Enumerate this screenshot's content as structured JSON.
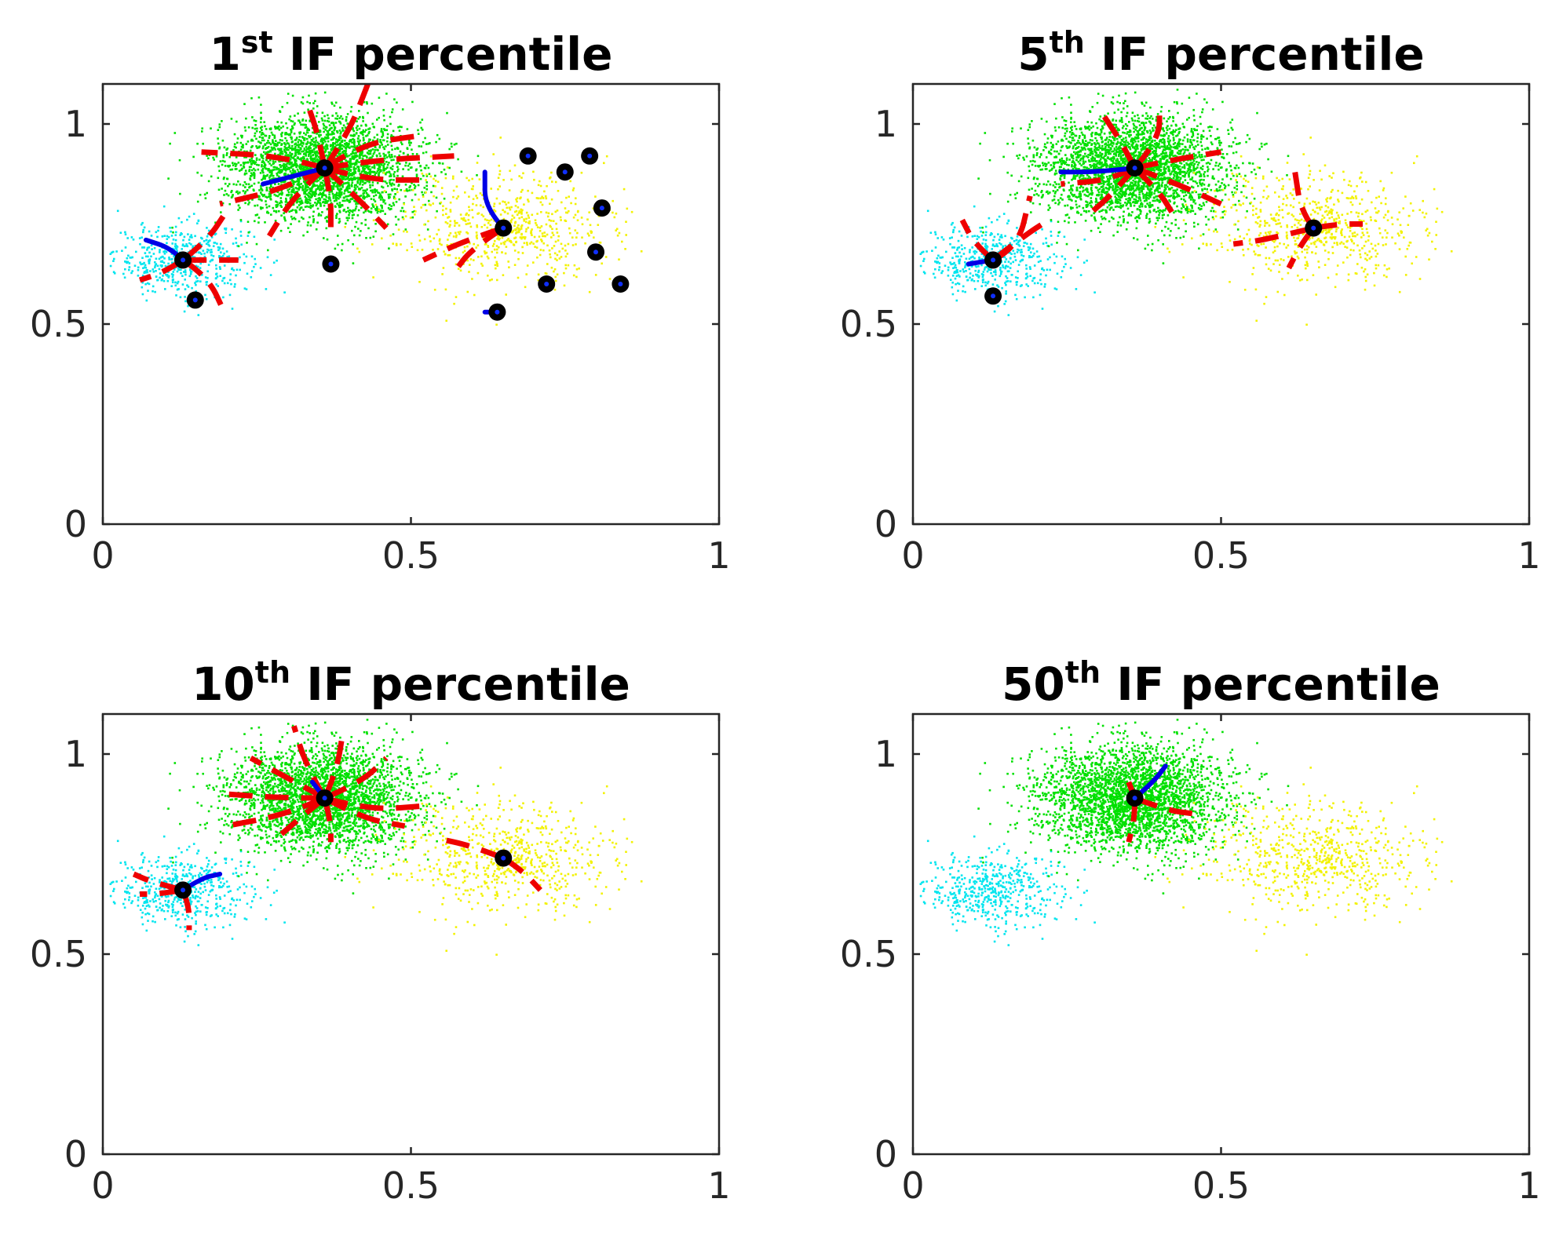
{
  "chart_data": [
    {
      "type": "scatter",
      "title": {
        "prefix": "1",
        "sup": "st",
        "suffix": " IF percentile"
      },
      "xlim": [
        0,
        1
      ],
      "ylim": [
        0,
        1.1
      ],
      "xticks": [
        0,
        0.5,
        1
      ],
      "xtick_labels": [
        "0",
        "0.5",
        "1"
      ],
      "yticks": [
        0,
        0.5,
        1
      ],
      "ytick_labels": [
        "0",
        "0.5",
        "1"
      ],
      "centers": [
        [
          0.13,
          0.66
        ],
        [
          0.15,
          0.56
        ],
        [
          0.36,
          0.89
        ],
        [
          0.37,
          0.65
        ],
        [
          0.65,
          0.74
        ],
        [
          0.69,
          0.92
        ],
        [
          0.75,
          0.88
        ],
        [
          0.79,
          0.92
        ],
        [
          0.81,
          0.79
        ],
        [
          0.8,
          0.68
        ],
        [
          0.72,
          0.6
        ],
        [
          0.84,
          0.6
        ],
        [
          0.64,
          0.53
        ]
      ],
      "blue_paths": [
        [
          [
            0.13,
            0.66
          ],
          [
            0.11,
            0.69
          ],
          [
            0.07,
            0.71
          ]
        ],
        [
          [
            0.36,
            0.89
          ],
          [
            0.31,
            0.87
          ],
          [
            0.26,
            0.85
          ]
        ],
        [
          [
            0.65,
            0.74
          ],
          [
            0.62,
            0.79
          ],
          [
            0.62,
            0.88
          ]
        ],
        [
          [
            0.64,
            0.53
          ],
          [
            0.62,
            0.53
          ]
        ]
      ],
      "red_paths": [
        [
          [
            0.36,
            0.89
          ],
          [
            0.44,
            0.91
          ],
          [
            0.57,
            0.92
          ]
        ],
        [
          [
            0.36,
            0.89
          ],
          [
            0.43,
            0.86
          ],
          [
            0.52,
            0.86
          ]
        ],
        [
          [
            0.36,
            0.89
          ],
          [
            0.41,
            0.82
          ],
          [
            0.46,
            0.74
          ]
        ],
        [
          [
            0.36,
            0.89
          ],
          [
            0.37,
            0.82
          ],
          [
            0.37,
            0.74
          ]
        ],
        [
          [
            0.36,
            0.89
          ],
          [
            0.31,
            0.82
          ],
          [
            0.27,
            0.72
          ]
        ],
        [
          [
            0.36,
            0.89
          ],
          [
            0.3,
            0.84
          ],
          [
            0.19,
            0.8
          ]
        ],
        [
          [
            0.36,
            0.89
          ],
          [
            0.29,
            0.92
          ],
          [
            0.16,
            0.93
          ]
        ],
        [
          [
            0.36,
            0.89
          ],
          [
            0.35,
            0.97
          ],
          [
            0.33,
            1.06
          ]
        ],
        [
          [
            0.36,
            0.89
          ],
          [
            0.4,
            0.98
          ],
          [
            0.43,
            1.1
          ]
        ],
        [
          [
            0.36,
            0.89
          ],
          [
            0.42,
            0.95
          ],
          [
            0.51,
            0.97
          ]
        ],
        [
          [
            0.13,
            0.66
          ],
          [
            0.1,
            0.63
          ],
          [
            0.06,
            0.61
          ]
        ],
        [
          [
            0.13,
            0.66
          ],
          [
            0.17,
            0.62
          ],
          [
            0.2,
            0.52
          ]
        ],
        [
          [
            0.13,
            0.66
          ],
          [
            0.18,
            0.66
          ],
          [
            0.22,
            0.66
          ]
        ],
        [
          [
            0.13,
            0.66
          ],
          [
            0.17,
            0.71
          ],
          [
            0.2,
            0.78
          ]
        ],
        [
          [
            0.65,
            0.74
          ],
          [
            0.6,
            0.69
          ],
          [
            0.57,
            0.63
          ]
        ],
        [
          [
            0.65,
            0.74
          ],
          [
            0.59,
            0.71
          ],
          [
            0.52,
            0.66
          ]
        ]
      ]
    },
    {
      "type": "scatter",
      "title": {
        "prefix": "5",
        "sup": "th",
        "suffix": " IF percentile"
      },
      "xlim": [
        0,
        1
      ],
      "ylim": [
        0,
        1.1
      ],
      "xticks": [
        0,
        0.5,
        1
      ],
      "xtick_labels": [
        "0",
        "0.5",
        "1"
      ],
      "yticks": [
        0,
        0.5,
        1
      ],
      "ytick_labels": [
        "0",
        "0.5",
        "1"
      ],
      "centers": [
        [
          0.13,
          0.66
        ],
        [
          0.13,
          0.57
        ],
        [
          0.36,
          0.89
        ],
        [
          0.65,
          0.74
        ]
      ],
      "blue_paths": [
        [
          [
            0.13,
            0.66
          ],
          [
            0.09,
            0.65
          ]
        ],
        [
          [
            0.36,
            0.89
          ],
          [
            0.3,
            0.88
          ],
          [
            0.24,
            0.88
          ]
        ]
      ],
      "red_paths": [
        [
          [
            0.36,
            0.89
          ],
          [
            0.4,
            0.96
          ],
          [
            0.4,
            1.05
          ]
        ],
        [
          [
            0.36,
            0.89
          ],
          [
            0.34,
            0.95
          ],
          [
            0.31,
            1.02
          ]
        ],
        [
          [
            0.36,
            0.89
          ],
          [
            0.42,
            0.91
          ],
          [
            0.5,
            0.93
          ]
        ],
        [
          [
            0.36,
            0.89
          ],
          [
            0.43,
            0.85
          ],
          [
            0.5,
            0.8
          ]
        ],
        [
          [
            0.36,
            0.89
          ],
          [
            0.4,
            0.83
          ],
          [
            0.42,
            0.78
          ]
        ],
        [
          [
            0.36,
            0.89
          ],
          [
            0.32,
            0.82
          ],
          [
            0.29,
            0.78
          ]
        ],
        [
          [
            0.36,
            0.89
          ],
          [
            0.32,
            0.86
          ],
          [
            0.24,
            0.85
          ]
        ],
        [
          [
            0.13,
            0.66
          ],
          [
            0.1,
            0.7
          ],
          [
            0.08,
            0.76
          ]
        ],
        [
          [
            0.13,
            0.66
          ],
          [
            0.18,
            0.72
          ],
          [
            0.22,
            0.76
          ]
        ],
        [
          [
            0.13,
            0.66
          ],
          [
            0.17,
            0.69
          ],
          [
            0.19,
            0.82
          ]
        ],
        [
          [
            0.65,
            0.74
          ],
          [
            0.63,
            0.78
          ],
          [
            0.62,
            0.88
          ]
        ],
        [
          [
            0.65,
            0.74
          ],
          [
            0.63,
            0.7
          ],
          [
            0.61,
            0.64
          ]
        ],
        [
          [
            0.65,
            0.74
          ],
          [
            0.57,
            0.71
          ],
          [
            0.52,
            0.7
          ]
        ],
        [
          [
            0.65,
            0.74
          ],
          [
            0.69,
            0.75
          ],
          [
            0.73,
            0.75
          ]
        ]
      ]
    },
    {
      "type": "scatter",
      "title": {
        "prefix": "10",
        "sup": "th",
        "suffix": " IF percentile"
      },
      "xlim": [
        0,
        1
      ],
      "ylim": [
        0,
        1.1
      ],
      "xticks": [
        0,
        0.5,
        1
      ],
      "xtick_labels": [
        "0",
        "0.5",
        "1"
      ],
      "yticks": [
        0,
        0.5,
        1
      ],
      "ytick_labels": [
        "0",
        "0.5",
        "1"
      ],
      "centers": [
        [
          0.13,
          0.66
        ],
        [
          0.36,
          0.89
        ],
        [
          0.65,
          0.74
        ]
      ],
      "blue_paths": [
        [
          [
            0.13,
            0.66
          ],
          [
            0.16,
            0.69
          ],
          [
            0.19,
            0.7
          ]
        ],
        [
          [
            0.36,
            0.89
          ],
          [
            0.34,
            0.93
          ]
        ]
      ],
      "red_paths": [
        [
          [
            0.36,
            0.89
          ],
          [
            0.38,
            0.96
          ],
          [
            0.39,
            1.06
          ]
        ],
        [
          [
            0.36,
            0.89
          ],
          [
            0.33,
            0.97
          ],
          [
            0.31,
            1.07
          ]
        ],
        [
          [
            0.36,
            0.89
          ],
          [
            0.42,
            0.93
          ],
          [
            0.46,
            0.99
          ]
        ],
        [
          [
            0.36,
            0.89
          ],
          [
            0.43,
            0.86
          ],
          [
            0.52,
            0.87
          ]
        ],
        [
          [
            0.36,
            0.89
          ],
          [
            0.42,
            0.84
          ],
          [
            0.49,
            0.82
          ]
        ],
        [
          [
            0.36,
            0.89
          ],
          [
            0.37,
            0.83
          ],
          [
            0.37,
            0.78
          ]
        ],
        [
          [
            0.36,
            0.89
          ],
          [
            0.32,
            0.84
          ],
          [
            0.29,
            0.8
          ]
        ],
        [
          [
            0.36,
            0.89
          ],
          [
            0.3,
            0.85
          ],
          [
            0.2,
            0.82
          ]
        ],
        [
          [
            0.36,
            0.89
          ],
          [
            0.29,
            0.89
          ],
          [
            0.2,
            0.9
          ]
        ],
        [
          [
            0.36,
            0.89
          ],
          [
            0.3,
            0.94
          ],
          [
            0.24,
            0.99
          ]
        ],
        [
          [
            0.13,
            0.66
          ],
          [
            0.09,
            0.65
          ],
          [
            0.06,
            0.65
          ]
        ],
        [
          [
            0.13,
            0.66
          ],
          [
            0.14,
            0.62
          ],
          [
            0.14,
            0.56
          ]
        ],
        [
          [
            0.13,
            0.66
          ],
          [
            0.08,
            0.68
          ],
          [
            0.05,
            0.7
          ]
        ],
        [
          [
            0.65,
            0.74
          ],
          [
            0.6,
            0.77
          ],
          [
            0.54,
            0.79
          ]
        ],
        [
          [
            0.65,
            0.74
          ],
          [
            0.68,
            0.71
          ],
          [
            0.71,
            0.66
          ]
        ]
      ]
    },
    {
      "type": "scatter",
      "title": {
        "prefix": "50",
        "sup": "th",
        "suffix": " IF percentile"
      },
      "xlim": [
        0,
        1
      ],
      "ylim": [
        0,
        1.1
      ],
      "xticks": [
        0,
        0.5,
        1
      ],
      "xtick_labels": [
        "0",
        "0.5",
        "1"
      ],
      "yticks": [
        0,
        0.5,
        1
      ],
      "ytick_labels": [
        "0",
        "0.5",
        "1"
      ],
      "centers": [
        [
          0.36,
          0.89
        ]
      ],
      "blue_paths": [
        [
          [
            0.36,
            0.89
          ],
          [
            0.39,
            0.93
          ],
          [
            0.41,
            0.97
          ]
        ]
      ],
      "red_paths": [
        [
          [
            0.36,
            0.89
          ],
          [
            0.41,
            0.86
          ],
          [
            0.46,
            0.85
          ]
        ],
        [
          [
            0.36,
            0.89
          ],
          [
            0.36,
            0.84
          ],
          [
            0.35,
            0.78
          ]
        ],
        [
          [
            0.36,
            0.89
          ],
          [
            0.35,
            0.93
          ]
        ]
      ]
    }
  ],
  "clusters": [
    {
      "name": "cyan",
      "color": "#00e5ee",
      "center": [
        0.13,
        0.66
      ],
      "spread": [
        0.055,
        0.045
      ],
      "count": 500
    },
    {
      "name": "green",
      "color": "#00e000",
      "center": [
        0.355,
        0.89
      ],
      "spread": [
        0.075,
        0.065
      ],
      "count": 3000
    },
    {
      "name": "yellow",
      "color": "#f2f200",
      "center": [
        0.65,
        0.74
      ],
      "spread": [
        0.09,
        0.07
      ],
      "count": 650
    }
  ],
  "colors": {
    "red": "#ee0000",
    "blue": "#0000e6",
    "center": "#000000",
    "center_mark": "#1030ff"
  }
}
